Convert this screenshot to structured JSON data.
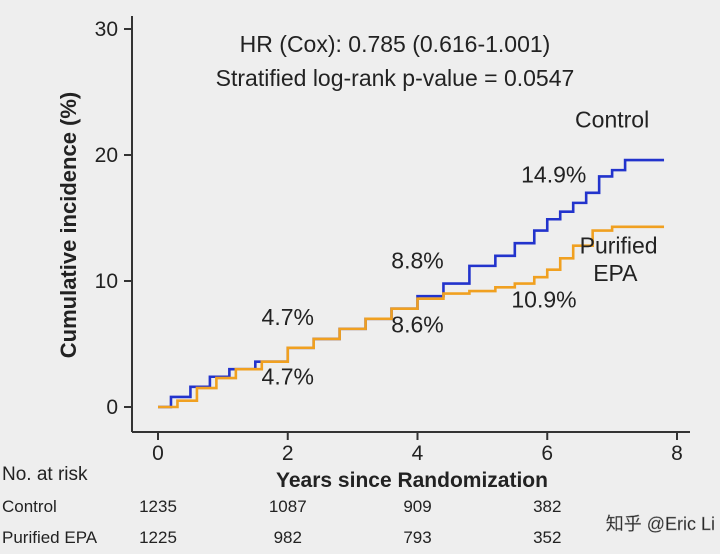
{
  "chart_data": {
    "type": "line",
    "title": "",
    "xlabel": "Years since Randomization",
    "ylabel": "Cumulative incidence (%)",
    "xlim": [
      0,
      8
    ],
    "ylim": [
      0,
      30
    ],
    "xticks": [
      0,
      2,
      4,
      6,
      8
    ],
    "yticks": [
      0,
      10,
      20,
      30
    ],
    "annotations": {
      "hr": "HR (Cox): 0.785 (0.616-1.001)",
      "logrank": "Stratified log-rank p-value = 0.0547"
    },
    "series": [
      {
        "name": "Control",
        "color": "#2233cc",
        "x": [
          0,
          0.2,
          0.5,
          0.8,
          1.1,
          1.5,
          2.0,
          2.4,
          2.8,
          3.2,
          3.6,
          4.0,
          4.4,
          4.8,
          5.2,
          5.5,
          5.8,
          6.0,
          6.2,
          6.4,
          6.6,
          6.8,
          7.0,
          7.2,
          7.8
        ],
        "y": [
          0,
          0.8,
          1.6,
          2.4,
          3.0,
          3.6,
          4.7,
          5.4,
          6.2,
          7.0,
          7.8,
          8.8,
          9.8,
          11.2,
          12.0,
          13.0,
          14.0,
          14.9,
          15.5,
          16.2,
          17.0,
          18.3,
          18.8,
          19.6,
          19.6
        ]
      },
      {
        "name": "Purified EPA",
        "color": "#f0a020",
        "x": [
          0,
          0.3,
          0.6,
          0.9,
          1.2,
          1.6,
          2.0,
          2.4,
          2.8,
          3.2,
          3.6,
          4.0,
          4.4,
          4.8,
          5.2,
          5.5,
          5.8,
          6.0,
          6.2,
          6.4,
          6.7,
          7.0,
          7.8
        ],
        "y": [
          0,
          0.5,
          1.5,
          2.3,
          3.0,
          3.6,
          4.7,
          5.4,
          6.2,
          7.0,
          7.8,
          8.6,
          9.0,
          9.2,
          9.5,
          9.8,
          10.3,
          10.9,
          11.8,
          12.8,
          14.0,
          14.3,
          14.3
        ]
      }
    ],
    "labels": [
      {
        "text": "Control",
        "x": 7.0,
        "y": 22.2,
        "anchor": "middle"
      },
      {
        "text": "14.9%",
        "x": 6.1,
        "y": 17.8,
        "anchor": "middle"
      },
      {
        "text": "Purified",
        "x": 7.1,
        "y": 12.2,
        "anchor": "middle"
      },
      {
        "text": "EPA",
        "x": 7.05,
        "y": 10.0,
        "anchor": "middle"
      },
      {
        "text": "10.9%",
        "x": 5.95,
        "y": 7.9,
        "anchor": "middle"
      },
      {
        "text": "8.8%",
        "x": 4.0,
        "y": 11.0,
        "anchor": "middle"
      },
      {
        "text": "8.6%",
        "x": 4.0,
        "y": 5.9,
        "anchor": "middle"
      },
      {
        "text": "4.7%",
        "x": 2.0,
        "y": 6.5,
        "anchor": "middle"
      },
      {
        "text": "4.7%",
        "x": 2.0,
        "y": 1.8,
        "anchor": "middle"
      }
    ]
  },
  "risk_table": {
    "title": "No. at risk",
    "rows": [
      {
        "label": "Control",
        "values": [
          "1235",
          "1087",
          "909",
          "382"
        ]
      },
      {
        "label": "Purified EPA",
        "values": [
          "1225",
          "982",
          "793",
          "352"
        ]
      }
    ],
    "at_years": [
      0,
      2,
      4,
      6
    ]
  },
  "watermark": "知乎 @Eric Li"
}
